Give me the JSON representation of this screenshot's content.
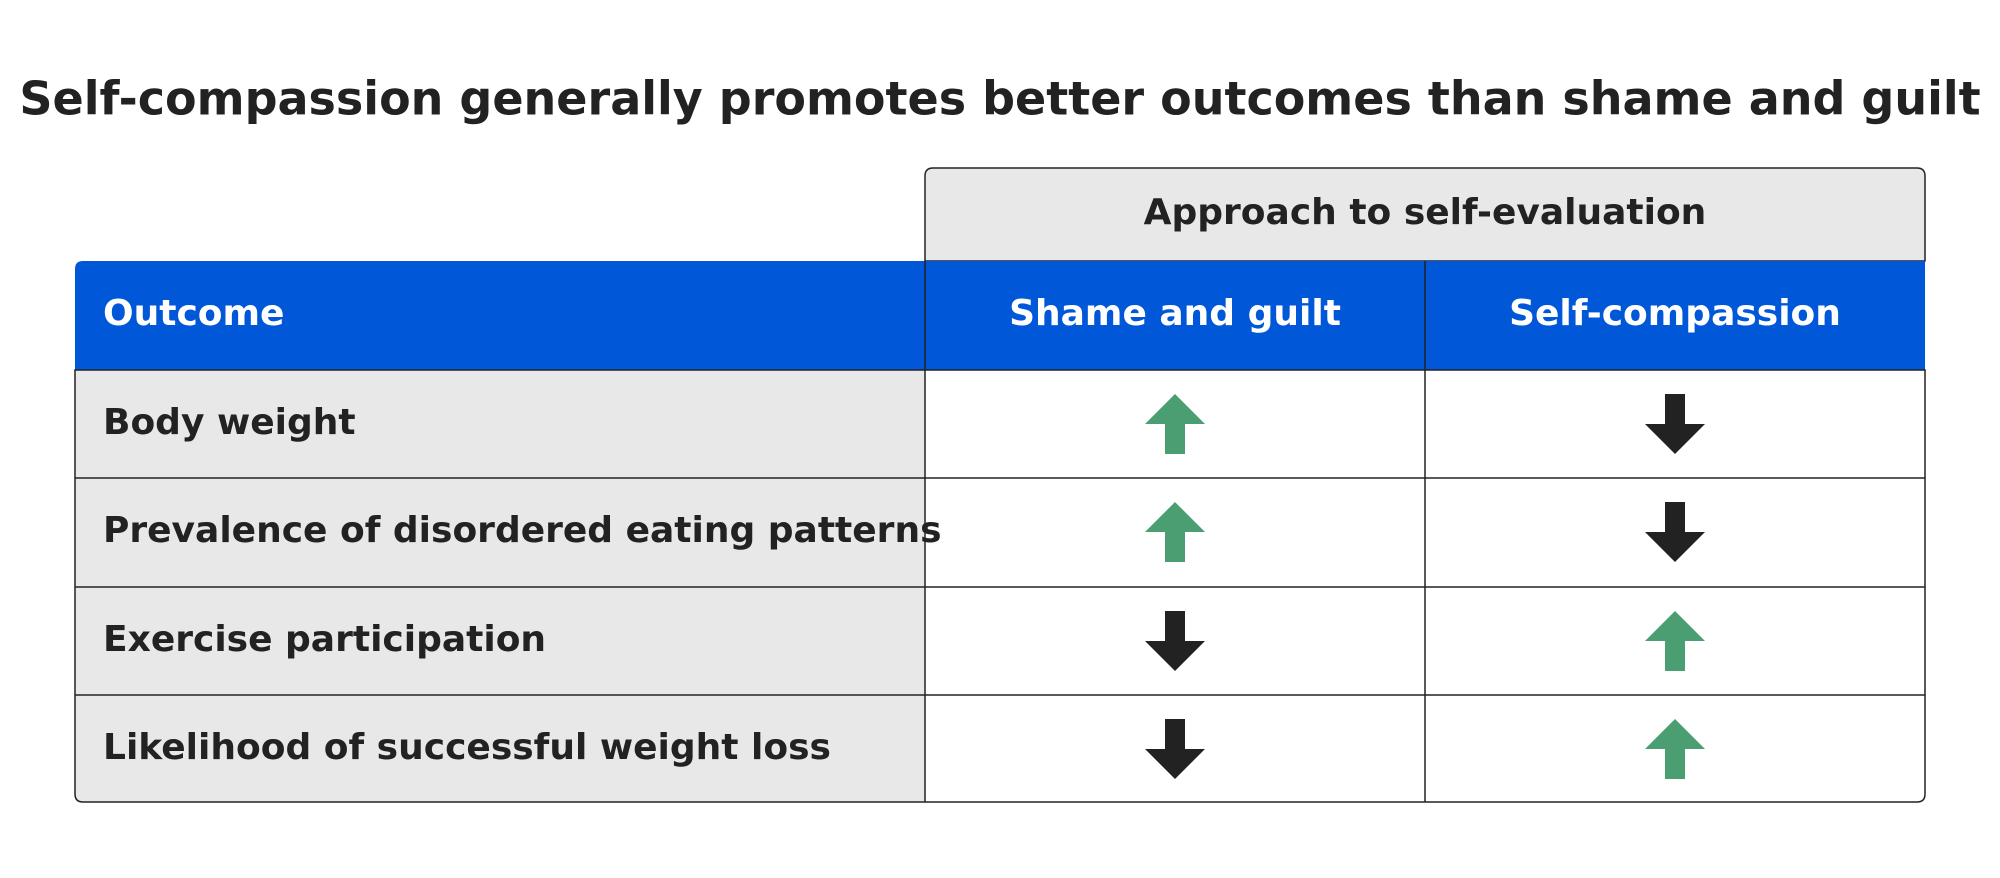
{
  "title": "Self-compassion generally promotes better outcomes than shame and guilt",
  "table": {
    "group_header": "Approach to self-evaluation",
    "columns": [
      "Outcome",
      "Shame and guilt",
      "Self-compassion"
    ],
    "rows": [
      "Body weight",
      "Prevalence of disordered eating patterns",
      "Exercise participation",
      "Likelihood of successful weight loss"
    ]
  }
}
